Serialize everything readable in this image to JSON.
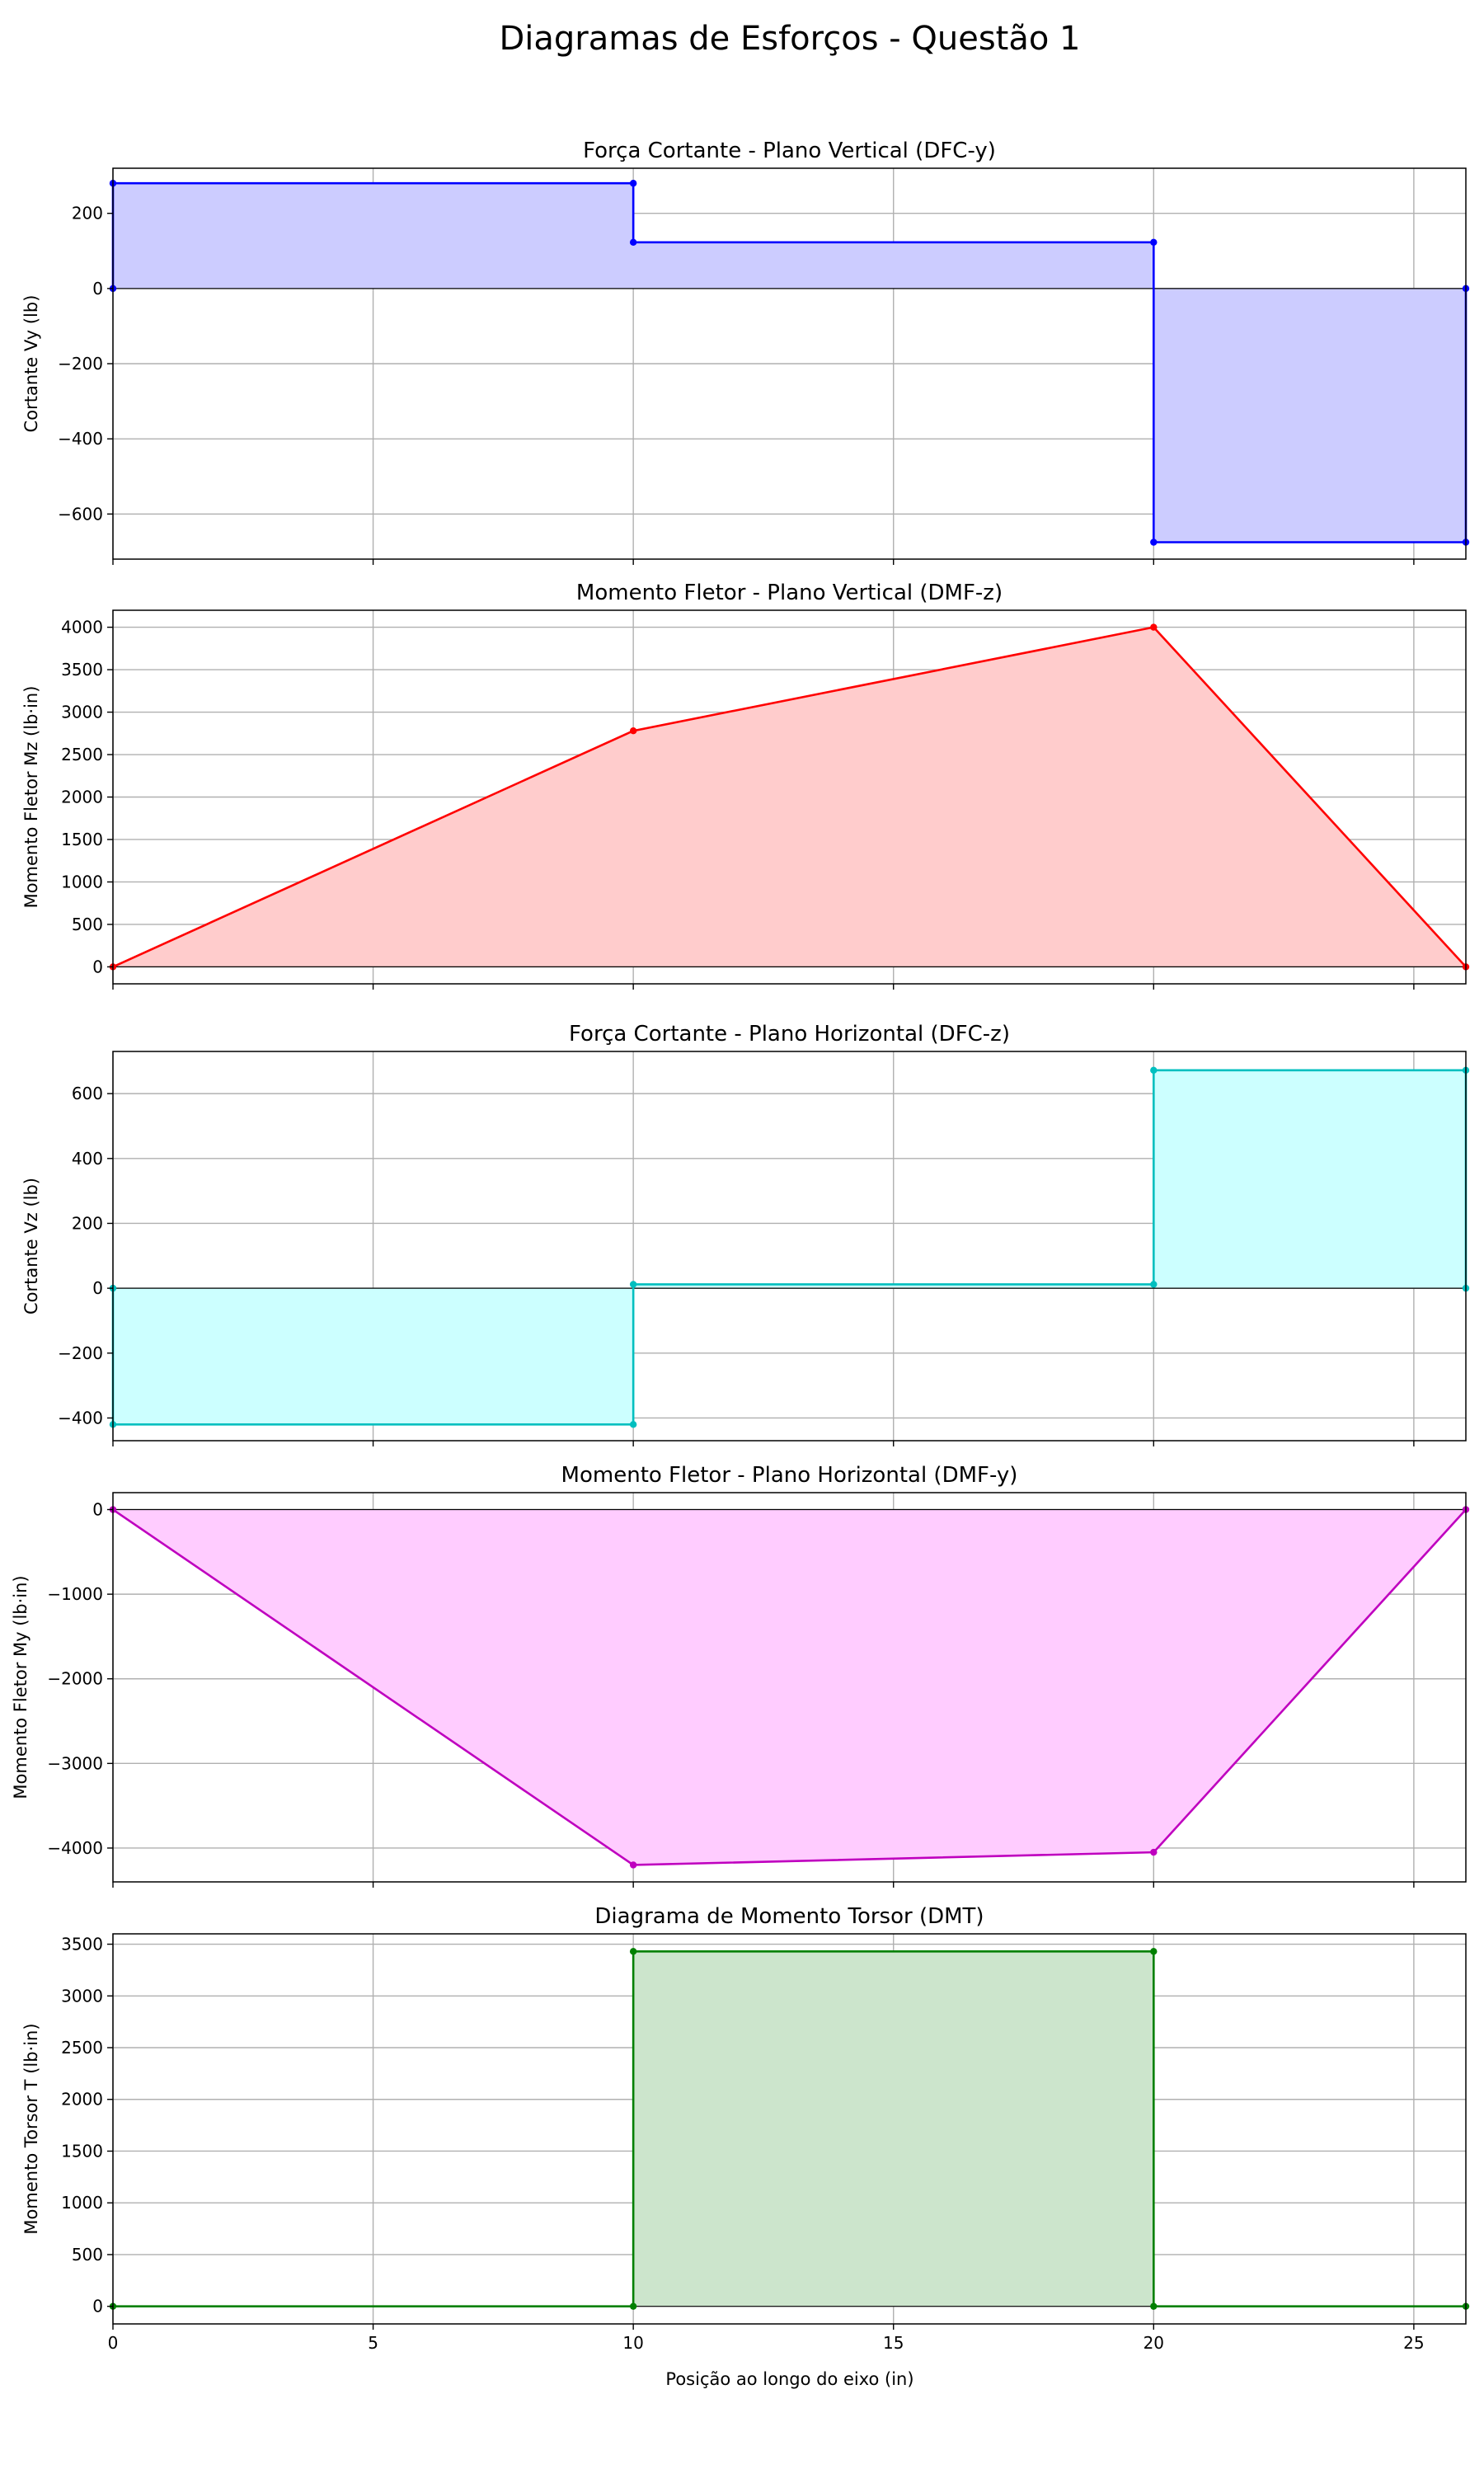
{
  "figure": {
    "title": "Diagramas de Esforços - Questão 1",
    "xlabel": "Posição ao longo do eixo (in)"
  },
  "chart_data": [
    {
      "type": "area",
      "title": "Força Cortante - Plano Vertical (DFC-y)",
      "xlabel": "",
      "ylabel": "Cortante Vy (lb)",
      "xlim": [
        0,
        26
      ],
      "ylim": [
        -720,
        320
      ],
      "xticks": [
        0,
        5,
        10,
        15,
        20,
        25
      ],
      "yticks": [
        -600,
        -400,
        -200,
        0,
        200
      ],
      "grid": true,
      "color": "#0000ff",
      "fill": "#ccccff",
      "x": [
        0,
        0,
        10,
        10,
        20,
        20,
        26,
        26
      ],
      "y": [
        0,
        280,
        280,
        123,
        123,
        -675,
        -675,
        0
      ]
    },
    {
      "type": "area",
      "title": "Momento Fletor - Plano Vertical (DMF-z)",
      "xlabel": "",
      "ylabel": "Momento Fletor Mz (lb·in)",
      "xlim": [
        0,
        26
      ],
      "ylim": [
        -200,
        4200
      ],
      "xticks": [
        0,
        5,
        10,
        15,
        20,
        25
      ],
      "yticks": [
        0,
        500,
        1000,
        1500,
        2000,
        2500,
        3000,
        3500,
        4000
      ],
      "grid": true,
      "color": "#ff0000",
      "fill": "#ffcccc",
      "x": [
        0,
        10,
        20,
        26
      ],
      "y": [
        0,
        2780,
        4000,
        0
      ]
    },
    {
      "type": "area",
      "title": "Força Cortante - Plano Horizontal (DFC-z)",
      "xlabel": "",
      "ylabel": "Cortante Vz (lb)",
      "xlim": [
        0,
        26
      ],
      "ylim": [
        -470,
        730
      ],
      "xticks": [
        0,
        5,
        10,
        15,
        20,
        25
      ],
      "yticks": [
        -400,
        -200,
        0,
        200,
        400,
        600
      ],
      "grid": true,
      "color": "#00bfbf",
      "fill": "#ccffff",
      "x": [
        0,
        0,
        10,
        10,
        20,
        20,
        26,
        26
      ],
      "y": [
        0,
        -420,
        -420,
        12,
        12,
        672,
        672,
        0
      ]
    },
    {
      "type": "area",
      "title": "Momento Fletor - Plano Horizontal (DMF-y)",
      "xlabel": "",
      "ylabel": "Momento Fletor My (lb·in)",
      "xlim": [
        0,
        26
      ],
      "ylim": [
        -4400,
        200
      ],
      "xticks": [
        0,
        5,
        10,
        15,
        20,
        25
      ],
      "yticks": [
        -4000,
        -3000,
        -2000,
        -1000,
        0
      ],
      "grid": true,
      "color": "#bf00bf",
      "fill": "#ffccff",
      "x": [
        0,
        10,
        20,
        26
      ],
      "y": [
        0,
        -4200,
        -4050,
        0
      ]
    },
    {
      "type": "area",
      "title": "Diagrama de Momento Torsor (DMT)",
      "xlabel": "Posição ao longo do eixo (in)",
      "ylabel": "Momento Torsor T (lb·in)",
      "xlim": [
        0,
        26
      ],
      "ylim": [
        -170,
        3600
      ],
      "xticks": [
        0,
        5,
        10,
        15,
        20,
        25
      ],
      "yticks": [
        0,
        500,
        1000,
        1500,
        2000,
        2500,
        3000,
        3500
      ],
      "grid": true,
      "color": "#008000",
      "fill": "#cce5cc",
      "x": [
        0,
        10,
        10,
        20,
        20,
        26
      ],
      "y": [
        0,
        0,
        3430,
        3430,
        0,
        0
      ]
    }
  ]
}
